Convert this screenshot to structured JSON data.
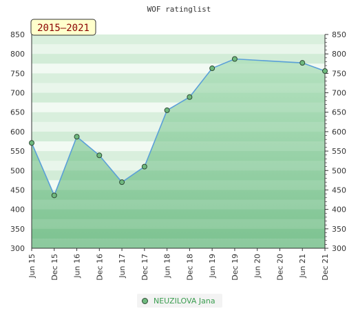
{
  "chart_data": {
    "type": "area",
    "title": "WOF ratinglist",
    "period_label": "2015–2021",
    "categories": [
      "Jun 15",
      "Dec 15",
      "Jun 16",
      "Dec 16",
      "Jun 17",
      "Dec 17",
      "Jun 18",
      "Dec 18",
      "Jun 19",
      "Dec 19",
      "Jun 20",
      "Dec 20",
      "Jun 21",
      "Dec 21"
    ],
    "yticks": [
      300,
      350,
      400,
      450,
      500,
      550,
      600,
      650,
      700,
      750,
      800,
      850
    ],
    "ylim": [
      300,
      850
    ],
    "series": [
      {
        "name": "NEUZILOVA Jana",
        "points": [
          {
            "x": "Jun 15",
            "y": 571
          },
          {
            "x": "Dec 15",
            "y": 436
          },
          {
            "x": "Jun 16",
            "y": 587
          },
          {
            "x": "Dec 16",
            "y": 539
          },
          {
            "x": "Jun 17",
            "y": 470
          },
          {
            "x": "Dec 17",
            "y": 510
          },
          {
            "x": "Jun 18",
            "y": 655
          },
          {
            "x": "Dec 18",
            "y": 689
          },
          {
            "x": "Jun 19",
            "y": 763
          },
          {
            "x": "Dec 19",
            "y": 787
          },
          {
            "x": "Jun 21",
            "y": 777
          },
          {
            "x": "Dec 21",
            "y": 756
          }
        ]
      }
    ],
    "colors": {
      "line": "#5a9fd8",
      "marker_fill": "#6fb97e",
      "marker_stroke": "#2d4a33",
      "area_top": "#a9dcb5",
      "area_bottom": "#78c08c",
      "label_bg": "#ffffcc",
      "legend_text": "#3a9d4f"
    },
    "grid": true,
    "legend_position": "bottom-center"
  }
}
